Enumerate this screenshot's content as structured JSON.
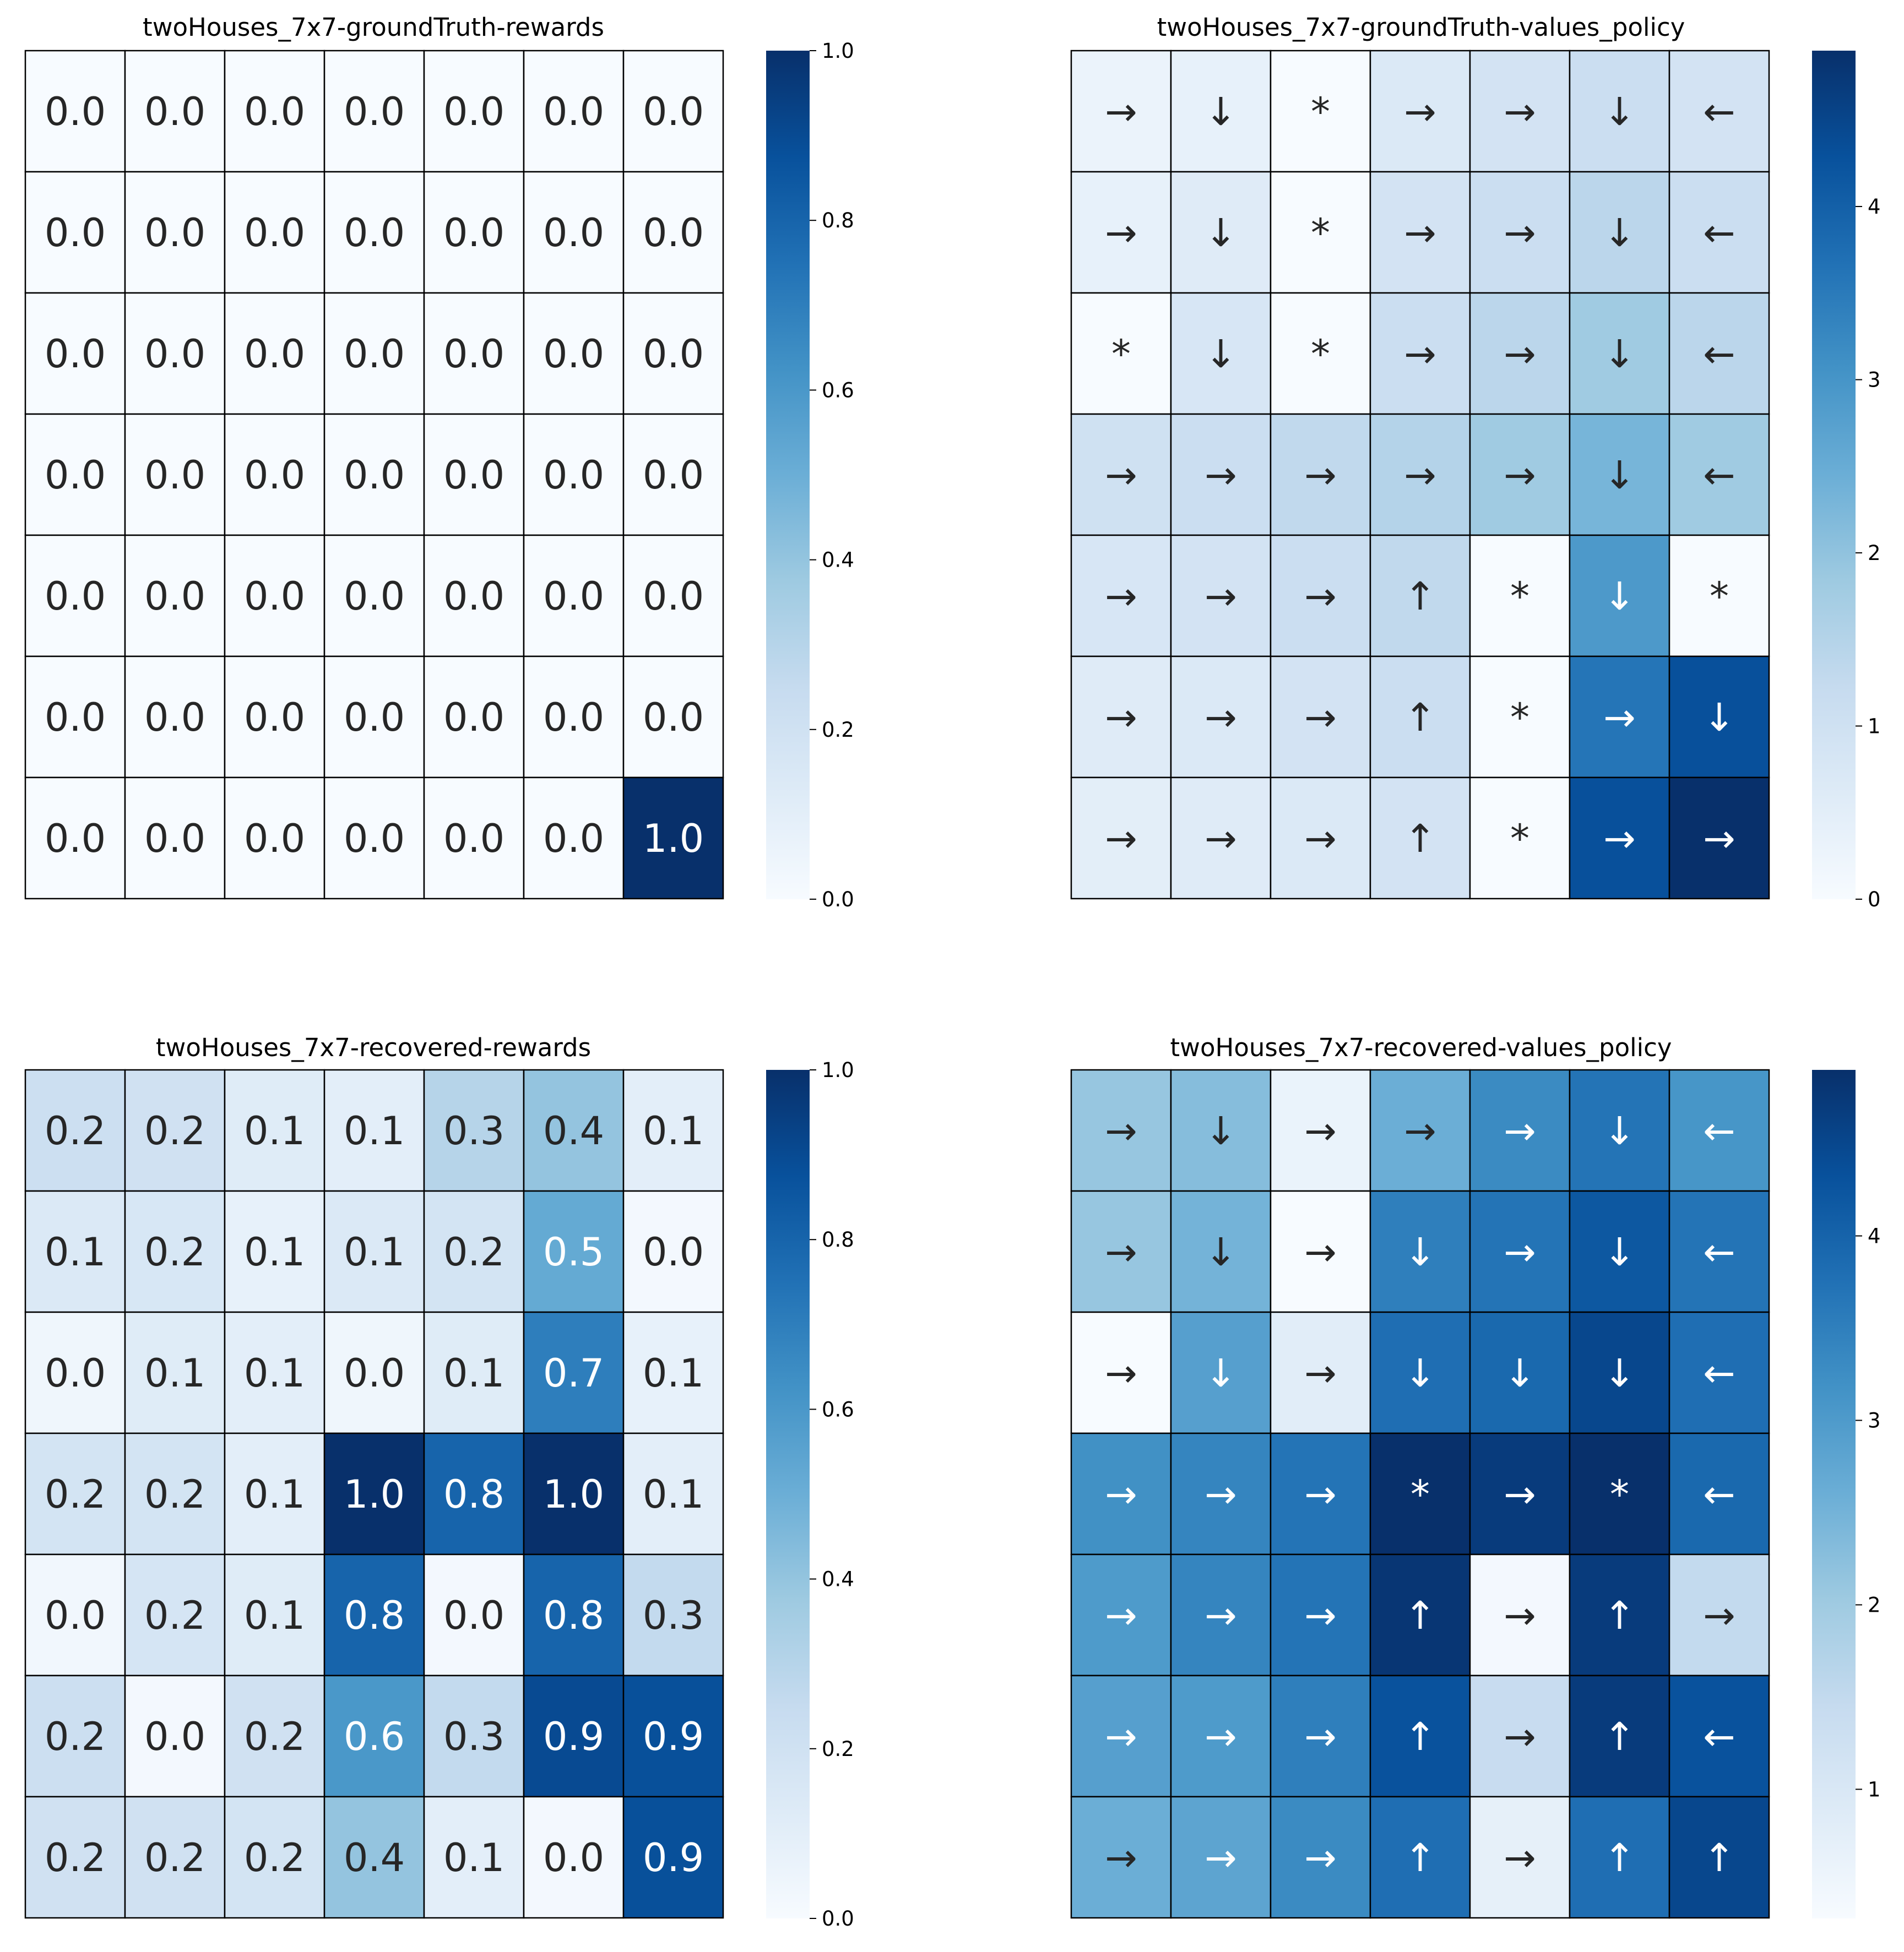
{
  "chart_data": [
    {
      "type": "heatmap",
      "title": "twoHouses_7x7-groundTruth-rewards",
      "cells": [
        [
          "0.0",
          "0.0",
          "0.0",
          "0.0",
          "0.0",
          "0.0",
          "0.0"
        ],
        [
          "0.0",
          "0.0",
          "0.0",
          "0.0",
          "0.0",
          "0.0",
          "0.0"
        ],
        [
          "0.0",
          "0.0",
          "0.0",
          "0.0",
          "0.0",
          "0.0",
          "0.0"
        ],
        [
          "0.0",
          "0.0",
          "0.0",
          "0.0",
          "0.0",
          "0.0",
          "0.0"
        ],
        [
          "0.0",
          "0.0",
          "0.0",
          "0.0",
          "0.0",
          "0.0",
          "0.0"
        ],
        [
          "0.0",
          "0.0",
          "0.0",
          "0.0",
          "0.0",
          "0.0",
          "0.0"
        ],
        [
          "0.0",
          "0.0",
          "0.0",
          "0.0",
          "0.0",
          "0.0",
          "1.0"
        ]
      ],
      "values": [
        [
          0,
          0,
          0,
          0,
          0,
          0,
          0
        ],
        [
          0,
          0,
          0,
          0,
          0,
          0,
          0
        ],
        [
          0,
          0,
          0,
          0,
          0,
          0,
          0
        ],
        [
          0,
          0,
          0,
          0,
          0,
          0,
          0
        ],
        [
          0,
          0,
          0,
          0,
          0,
          0,
          0
        ],
        [
          0,
          0,
          0,
          0,
          0,
          0,
          0
        ],
        [
          0,
          0,
          0,
          0,
          0,
          0,
          1.0
        ]
      ],
      "colorbar": {
        "min": 0.0,
        "max": 1.0,
        "ticks": [
          "0.0",
          "0.2",
          "0.4",
          "0.6",
          "0.8",
          "1.0"
        ],
        "tick_values": [
          0,
          0.2,
          0.4,
          0.6,
          0.8,
          1.0
        ]
      },
      "colormap": "Blues"
    },
    {
      "type": "heatmap",
      "title": "twoHouses_7x7-groundTruth-values_policy",
      "cells": [
        [
          "→",
          "↓",
          "*",
          "→",
          "→",
          "↓",
          "←"
        ],
        [
          "→",
          "↓",
          "*",
          "→",
          "→",
          "↓",
          "←"
        ],
        [
          "*",
          "↓",
          "*",
          "→",
          "→",
          "↓",
          "←"
        ],
        [
          "→",
          "→",
          "→",
          "→",
          "→",
          "↓",
          "←"
        ],
        [
          "→",
          "→",
          "→",
          "↑",
          "*",
          "↓",
          "*"
        ],
        [
          "→",
          "→",
          "→",
          "↑",
          "*",
          "→",
          "↓"
        ],
        [
          "→",
          "→",
          "→",
          "↑",
          "*",
          "→",
          "→"
        ]
      ],
      "values": [
        [
          0.3,
          0.4,
          0.0,
          0.7,
          0.9,
          1.1,
          0.9
        ],
        [
          0.4,
          0.6,
          0.0,
          0.9,
          1.1,
          1.4,
          1.1
        ],
        [
          0.0,
          0.8,
          0.0,
          1.1,
          1.4,
          1.8,
          1.4
        ],
        [
          1.0,
          1.1,
          1.3,
          1.5,
          1.8,
          2.3,
          1.8
        ],
        [
          0.8,
          0.9,
          1.1,
          1.3,
          0.0,
          2.9,
          0.0
        ],
        [
          0.6,
          0.7,
          0.9,
          1.1,
          0.0,
          3.6,
          4.3
        ],
        [
          0.5,
          0.6,
          0.7,
          0.9,
          0.0,
          4.3,
          4.9
        ]
      ],
      "colorbar": {
        "min": 0,
        "max": 4.9,
        "ticks": [
          "0",
          "1",
          "2",
          "3",
          "4"
        ],
        "tick_values": [
          0,
          1,
          2,
          3,
          4
        ]
      },
      "colormap": "Blues"
    },
    {
      "type": "heatmap",
      "title": "twoHouses_7x7-recovered-rewards",
      "cells": [
        [
          "0.2",
          "0.2",
          "0.1",
          "0.1",
          "0.3",
          "0.4",
          "0.1"
        ],
        [
          "0.1",
          "0.2",
          "0.1",
          "0.1",
          "0.2",
          "0.5",
          "0.0"
        ],
        [
          "0.0",
          "0.1",
          "0.1",
          "0.0",
          "0.1",
          "0.7",
          "0.1"
        ],
        [
          "0.2",
          "0.2",
          "0.1",
          "1.0",
          "0.8",
          "1.0",
          "0.1"
        ],
        [
          "0.0",
          "0.2",
          "0.1",
          "0.8",
          "0.0",
          "0.8",
          "0.3"
        ],
        [
          "0.2",
          "0.0",
          "0.2",
          "0.6",
          "0.3",
          "0.9",
          "0.9"
        ],
        [
          "0.2",
          "0.2",
          "0.2",
          "0.4",
          "0.1",
          "0.0",
          "0.9"
        ]
      ],
      "values": [
        [
          0.22,
          0.2,
          0.12,
          0.1,
          0.3,
          0.4,
          0.1
        ],
        [
          0.14,
          0.16,
          0.08,
          0.14,
          0.18,
          0.52,
          0.02
        ],
        [
          0.04,
          0.12,
          0.1,
          0.04,
          0.12,
          0.7,
          0.08
        ],
        [
          0.18,
          0.18,
          0.1,
          1.0,
          0.8,
          1.0,
          0.1
        ],
        [
          0.03,
          0.17,
          0.12,
          0.8,
          0.02,
          0.8,
          0.26
        ],
        [
          0.22,
          0.02,
          0.2,
          0.6,
          0.26,
          0.9,
          0.88
        ],
        [
          0.2,
          0.2,
          0.18,
          0.4,
          0.1,
          0.02,
          0.88
        ]
      ],
      "colorbar": {
        "min": 0.0,
        "max": 1.0,
        "ticks": [
          "0.0",
          "0.2",
          "0.4",
          "0.6",
          "0.8",
          "1.0"
        ],
        "tick_values": [
          0,
          0.2,
          0.4,
          0.6,
          0.8,
          1.0
        ]
      },
      "colormap": "Blues"
    },
    {
      "type": "heatmap",
      "title": "twoHouses_7x7-recovered-values_policy",
      "cells": [
        [
          "→",
          "↓",
          "→",
          "→",
          "→",
          "↓",
          "←"
        ],
        [
          "→",
          "↓",
          "→",
          "↓",
          "→",
          "↓",
          "←"
        ],
        [
          "→",
          "↓",
          "→",
          "↓",
          "↓",
          "↓",
          "←"
        ],
        [
          "→",
          "→",
          "→",
          "*",
          "→",
          "*",
          "←"
        ],
        [
          "→",
          "→",
          "→",
          "↑",
          "→",
          "↑",
          "→"
        ],
        [
          "→",
          "→",
          "→",
          "↑",
          "→",
          "↑",
          "←"
        ],
        [
          "→",
          "→",
          "→",
          "↑",
          "→",
          "↑",
          "↑"
        ]
      ],
      "values": [
        [
          2.1,
          2.3,
          0.6,
          2.6,
          3.3,
          3.7,
          3.1
        ],
        [
          2.1,
          2.5,
          0.3,
          3.5,
          3.7,
          4.2,
          3.7
        ],
        [
          0.3,
          2.9,
          0.8,
          3.8,
          3.9,
          4.5,
          3.8
        ],
        [
          3.2,
          3.4,
          3.7,
          4.9,
          4.7,
          4.9,
          3.9
        ],
        [
          3.0,
          3.4,
          3.7,
          4.8,
          0.4,
          4.7,
          1.5
        ],
        [
          2.9,
          3.0,
          3.5,
          4.3,
          1.4,
          4.7,
          4.3
        ],
        [
          2.6,
          2.8,
          3.3,
          3.8,
          0.7,
          3.8,
          4.5
        ]
      ],
      "colorbar": {
        "min": 0.3,
        "max": 4.9,
        "ticks": [
          "1",
          "2",
          "3",
          "4"
        ],
        "tick_values": [
          1,
          2,
          3,
          4
        ]
      },
      "colormap": "Blues"
    }
  ]
}
